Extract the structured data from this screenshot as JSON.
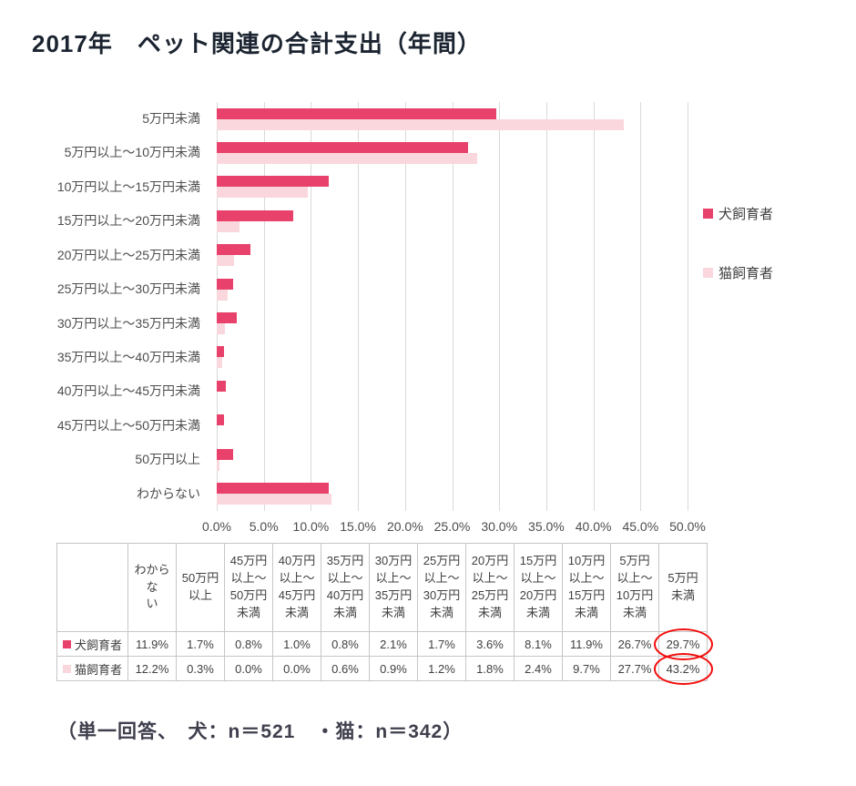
{
  "title": "2017年　ペット関連の合計支出（年間）",
  "footer": "（単一回答、　犬：n＝521　・猫：n＝342）",
  "colors": {
    "dog": "#e8416b",
    "cat": "#f9d7dc",
    "grid": "#d9d9d9",
    "axis_text": "#4d4d4d",
    "table_border": "#c6c6c6",
    "highlight_circle": "#f40b0b"
  },
  "chart_data": {
    "type": "bar",
    "orientation": "horizontal",
    "title": "2017年　ペット関連の合計支出（年間）",
    "categories": [
      "5万円未満",
      "5万円以上～10万円未満",
      "10万円以上～15万円未満",
      "15万円以上～20万円未満",
      "20万円以上～25万円未満",
      "25万円以上～30万円未満",
      "30万円以上～35万円未満",
      "35万円以上～40万円未満",
      "40万円以上～45万円未満",
      "45万円以上～50万円未満",
      "50万円以上",
      "わからない"
    ],
    "series": [
      {
        "key": "dog",
        "name": "犬飼育者",
        "color": "#e8416b",
        "values": [
          29.7,
          26.7,
          11.9,
          8.1,
          3.6,
          1.7,
          2.1,
          0.8,
          1.0,
          0.8,
          1.7,
          11.9
        ]
      },
      {
        "key": "cat",
        "name": "猫飼育者",
        "color": "#f9d7dc",
        "values": [
          43.2,
          27.7,
          9.7,
          2.4,
          1.8,
          1.2,
          0.9,
          0.6,
          0.0,
          0.0,
          0.3,
          12.2
        ]
      }
    ],
    "xlim": [
      0,
      50
    ],
    "x_tick_values": [
      0,
      5,
      10,
      15,
      20,
      25,
      30,
      35,
      40,
      45,
      50
    ],
    "x_tick_labels": [
      "0.0%",
      "5.0%",
      "10.0%",
      "15.0%",
      "20.0%",
      "25.0%",
      "30.0%",
      "35.0%",
      "40.0%",
      "45.0%",
      "50.0%"
    ],
    "grid": true,
    "legend_position": "right"
  },
  "table": {
    "corner_label": "",
    "columns": [
      "わからな\nい",
      "50万円\n以上",
      "45万円\n以上～\n50万円\n未満",
      "40万円\n以上～\n45万円\n未満",
      "35万円\n以上～\n40万円\n未満",
      "30万円\n以上～\n35万円\n未満",
      "25万円\n以上～\n30万円\n未満",
      "20万円\n以上～\n25万円\n未満",
      "15万円\n以上～\n20万円\n未満",
      "10万円\n以上～\n15万円\n未満",
      "5万円\n以上～\n10万円\n未満",
      "5万円\n未満"
    ],
    "rows": [
      {
        "key": "dog",
        "label": "犬飼育者",
        "values": [
          "11.9%",
          "1.7%",
          "0.8%",
          "1.0%",
          "0.8%",
          "2.1%",
          "1.7%",
          "3.6%",
          "8.1%",
          "11.9%",
          "26.7%",
          "29.7%"
        ]
      },
      {
        "key": "cat",
        "label": "猫飼育者",
        "values": [
          "12.2%",
          "0.3%",
          "0.0%",
          "0.0%",
          "0.6%",
          "0.9%",
          "1.2%",
          "1.8%",
          "2.4%",
          "9.7%",
          "27.7%",
          "43.2%"
        ]
      }
    ],
    "highlighted_cells": [
      {
        "row": 0,
        "col": 11
      },
      {
        "row": 1,
        "col": 11
      }
    ]
  }
}
